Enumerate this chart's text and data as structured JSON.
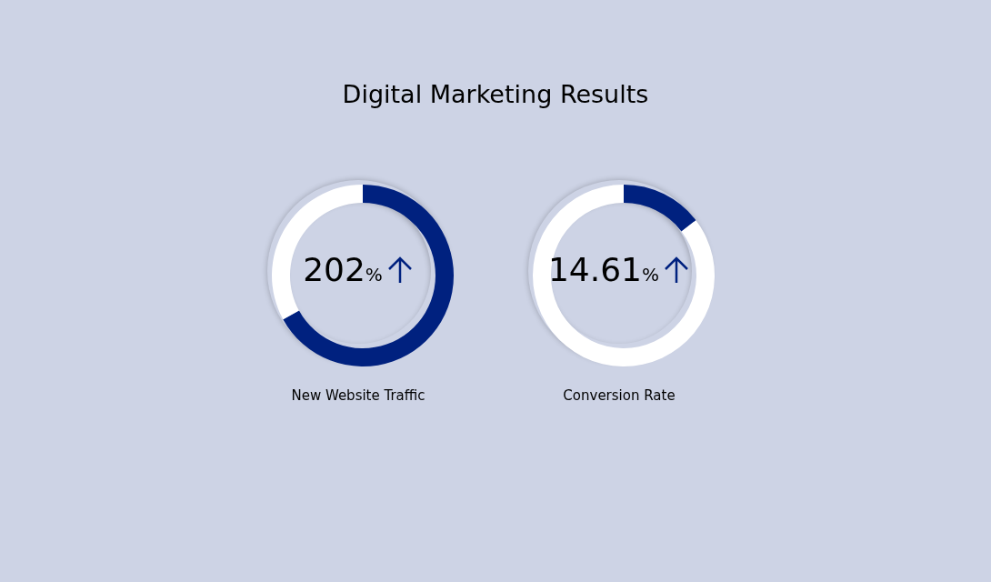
{
  "chart_data": [
    {
      "type": "donut",
      "title": "Digital Marketing Results",
      "xlabel": "New Website Traffic",
      "categories": [
        null,
        null
      ],
      "values": [
        67,
        33
      ],
      "colors": [
        "#00217f",
        "#ffffff"
      ],
      "annotations": [
        "202%"
      ]
    },
    {
      "type": "donut",
      "xlabel": "Conversion Rate",
      "categories": [
        null,
        null
      ],
      "values": [
        14.61,
        85.39
      ],
      "colors": [
        "#00217f",
        "#ffffff"
      ],
      "annotations": [
        "14.61%"
      ]
    }
  ]
}
